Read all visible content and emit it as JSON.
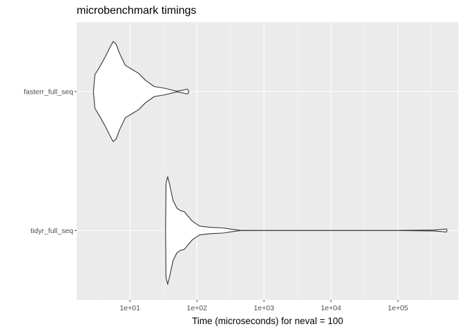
{
  "chart_data": {
    "type": "violin",
    "title": "microbenchmark timings",
    "xlabel": "Time (microseconds) for neval = 100",
    "ylabel": "",
    "x_scale": "log10",
    "xlim": [
      1.6,
      800000
    ],
    "x_ticks": [
      {
        "value": 10,
        "label": "1e+01"
      },
      {
        "value": 100,
        "label": "1e+02"
      },
      {
        "value": 1000,
        "label": "1e+03"
      },
      {
        "value": 10000,
        "label": "1e+04"
      },
      {
        "value": 100000,
        "label": "1e+05"
      }
    ],
    "grid": true,
    "categories": [
      "fasterr_full_seq",
      "tidyr_full_seq"
    ],
    "series": [
      {
        "name": "fasterr_full_seq",
        "density_profile": [
          {
            "x": 2.85,
            "w": 0.0
          },
          {
            "x": 3.0,
            "w": 0.27
          },
          {
            "x": 3.6,
            "w": 0.41
          },
          {
            "x": 4.3,
            "w": 0.56
          },
          {
            "x": 5.0,
            "w": 0.7
          },
          {
            "x": 5.6,
            "w": 0.8
          },
          {
            "x": 6.2,
            "w": 0.76
          },
          {
            "x": 7.0,
            "w": 0.61
          },
          {
            "x": 8.5,
            "w": 0.42
          },
          {
            "x": 10.5,
            "w": 0.36
          },
          {
            "x": 13.5,
            "w": 0.29
          },
          {
            "x": 17.0,
            "w": 0.18
          },
          {
            "x": 23.0,
            "w": 0.08
          },
          {
            "x": 32.0,
            "w": 0.055
          },
          {
            "x": 42.0,
            "w": 0.025
          },
          {
            "x": 50.0,
            "w": 0.005
          },
          {
            "x": 60.0,
            "w": 0.02
          },
          {
            "x": 72.0,
            "w": 0.04
          },
          {
            "x": 76.0,
            "w": 0.0
          }
        ]
      },
      {
        "name": "tidyr_full_seq",
        "density_profile": [
          {
            "x": 34.0,
            "w": 0.0
          },
          {
            "x": 34.5,
            "w": 0.75
          },
          {
            "x": 36.5,
            "w": 0.86
          },
          {
            "x": 39.0,
            "w": 0.74
          },
          {
            "x": 44.0,
            "w": 0.48
          },
          {
            "x": 50.0,
            "w": 0.36
          },
          {
            "x": 56.0,
            "w": 0.32
          },
          {
            "x": 65.0,
            "w": 0.3
          },
          {
            "x": 72.0,
            "w": 0.24
          },
          {
            "x": 85.0,
            "w": 0.15
          },
          {
            "x": 110.0,
            "w": 0.07
          },
          {
            "x": 160.0,
            "w": 0.05
          },
          {
            "x": 250.0,
            "w": 0.04
          },
          {
            "x": 330.0,
            "w": 0.02
          },
          {
            "x": 440.0,
            "w": 0.002
          },
          {
            "x": 1000.0,
            "w": 0.001
          },
          {
            "x": 100000.0,
            "w": 0.001
          },
          {
            "x": 350000.0,
            "w": 0.008
          },
          {
            "x": 530000.0,
            "w": 0.024
          },
          {
            "x": 540000.0,
            "w": 0.0
          }
        ]
      }
    ]
  }
}
